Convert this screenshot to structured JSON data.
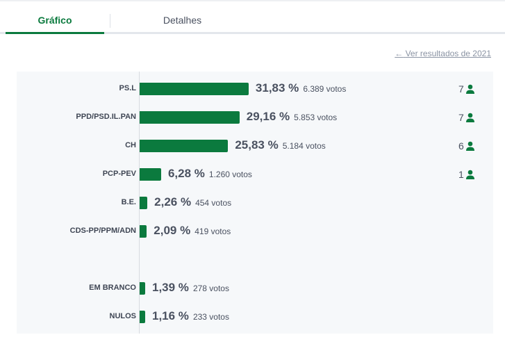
{
  "tabs": [
    {
      "label": "Gráfico",
      "active": true
    },
    {
      "label": "Detalhes",
      "active": false
    }
  ],
  "link": "Ver resultados de 2021",
  "colors": {
    "accent": "#0b7a3e"
  },
  "chart_data": {
    "type": "bar",
    "orientation": "horizontal",
    "categories": [
      "PS.L",
      "PPD/PSD.IL.PAN",
      "CH",
      "PCP-PEV",
      "B.E.",
      "CDS-PP/PPM/ADN",
      "EM BRANCO",
      "NULOS"
    ],
    "values": [
      31.83,
      29.16,
      25.83,
      6.28,
      2.26,
      2.09,
      1.39,
      1.16
    ],
    "pct_labels": [
      "31,83 %",
      "29,16 %",
      "25,83 %",
      "6,28 %",
      "2,26 %",
      "2,09 %",
      "1,39 %",
      "1,16 %"
    ],
    "votes": [
      "6.389 votos",
      "5.853 votos",
      "5.184 votos",
      "1.260 votos",
      "454 votos",
      "419 votos",
      "278 votos",
      "233 votos"
    ],
    "seats": [
      "7",
      "7",
      "6",
      "1",
      null,
      null,
      null,
      null
    ]
  }
}
